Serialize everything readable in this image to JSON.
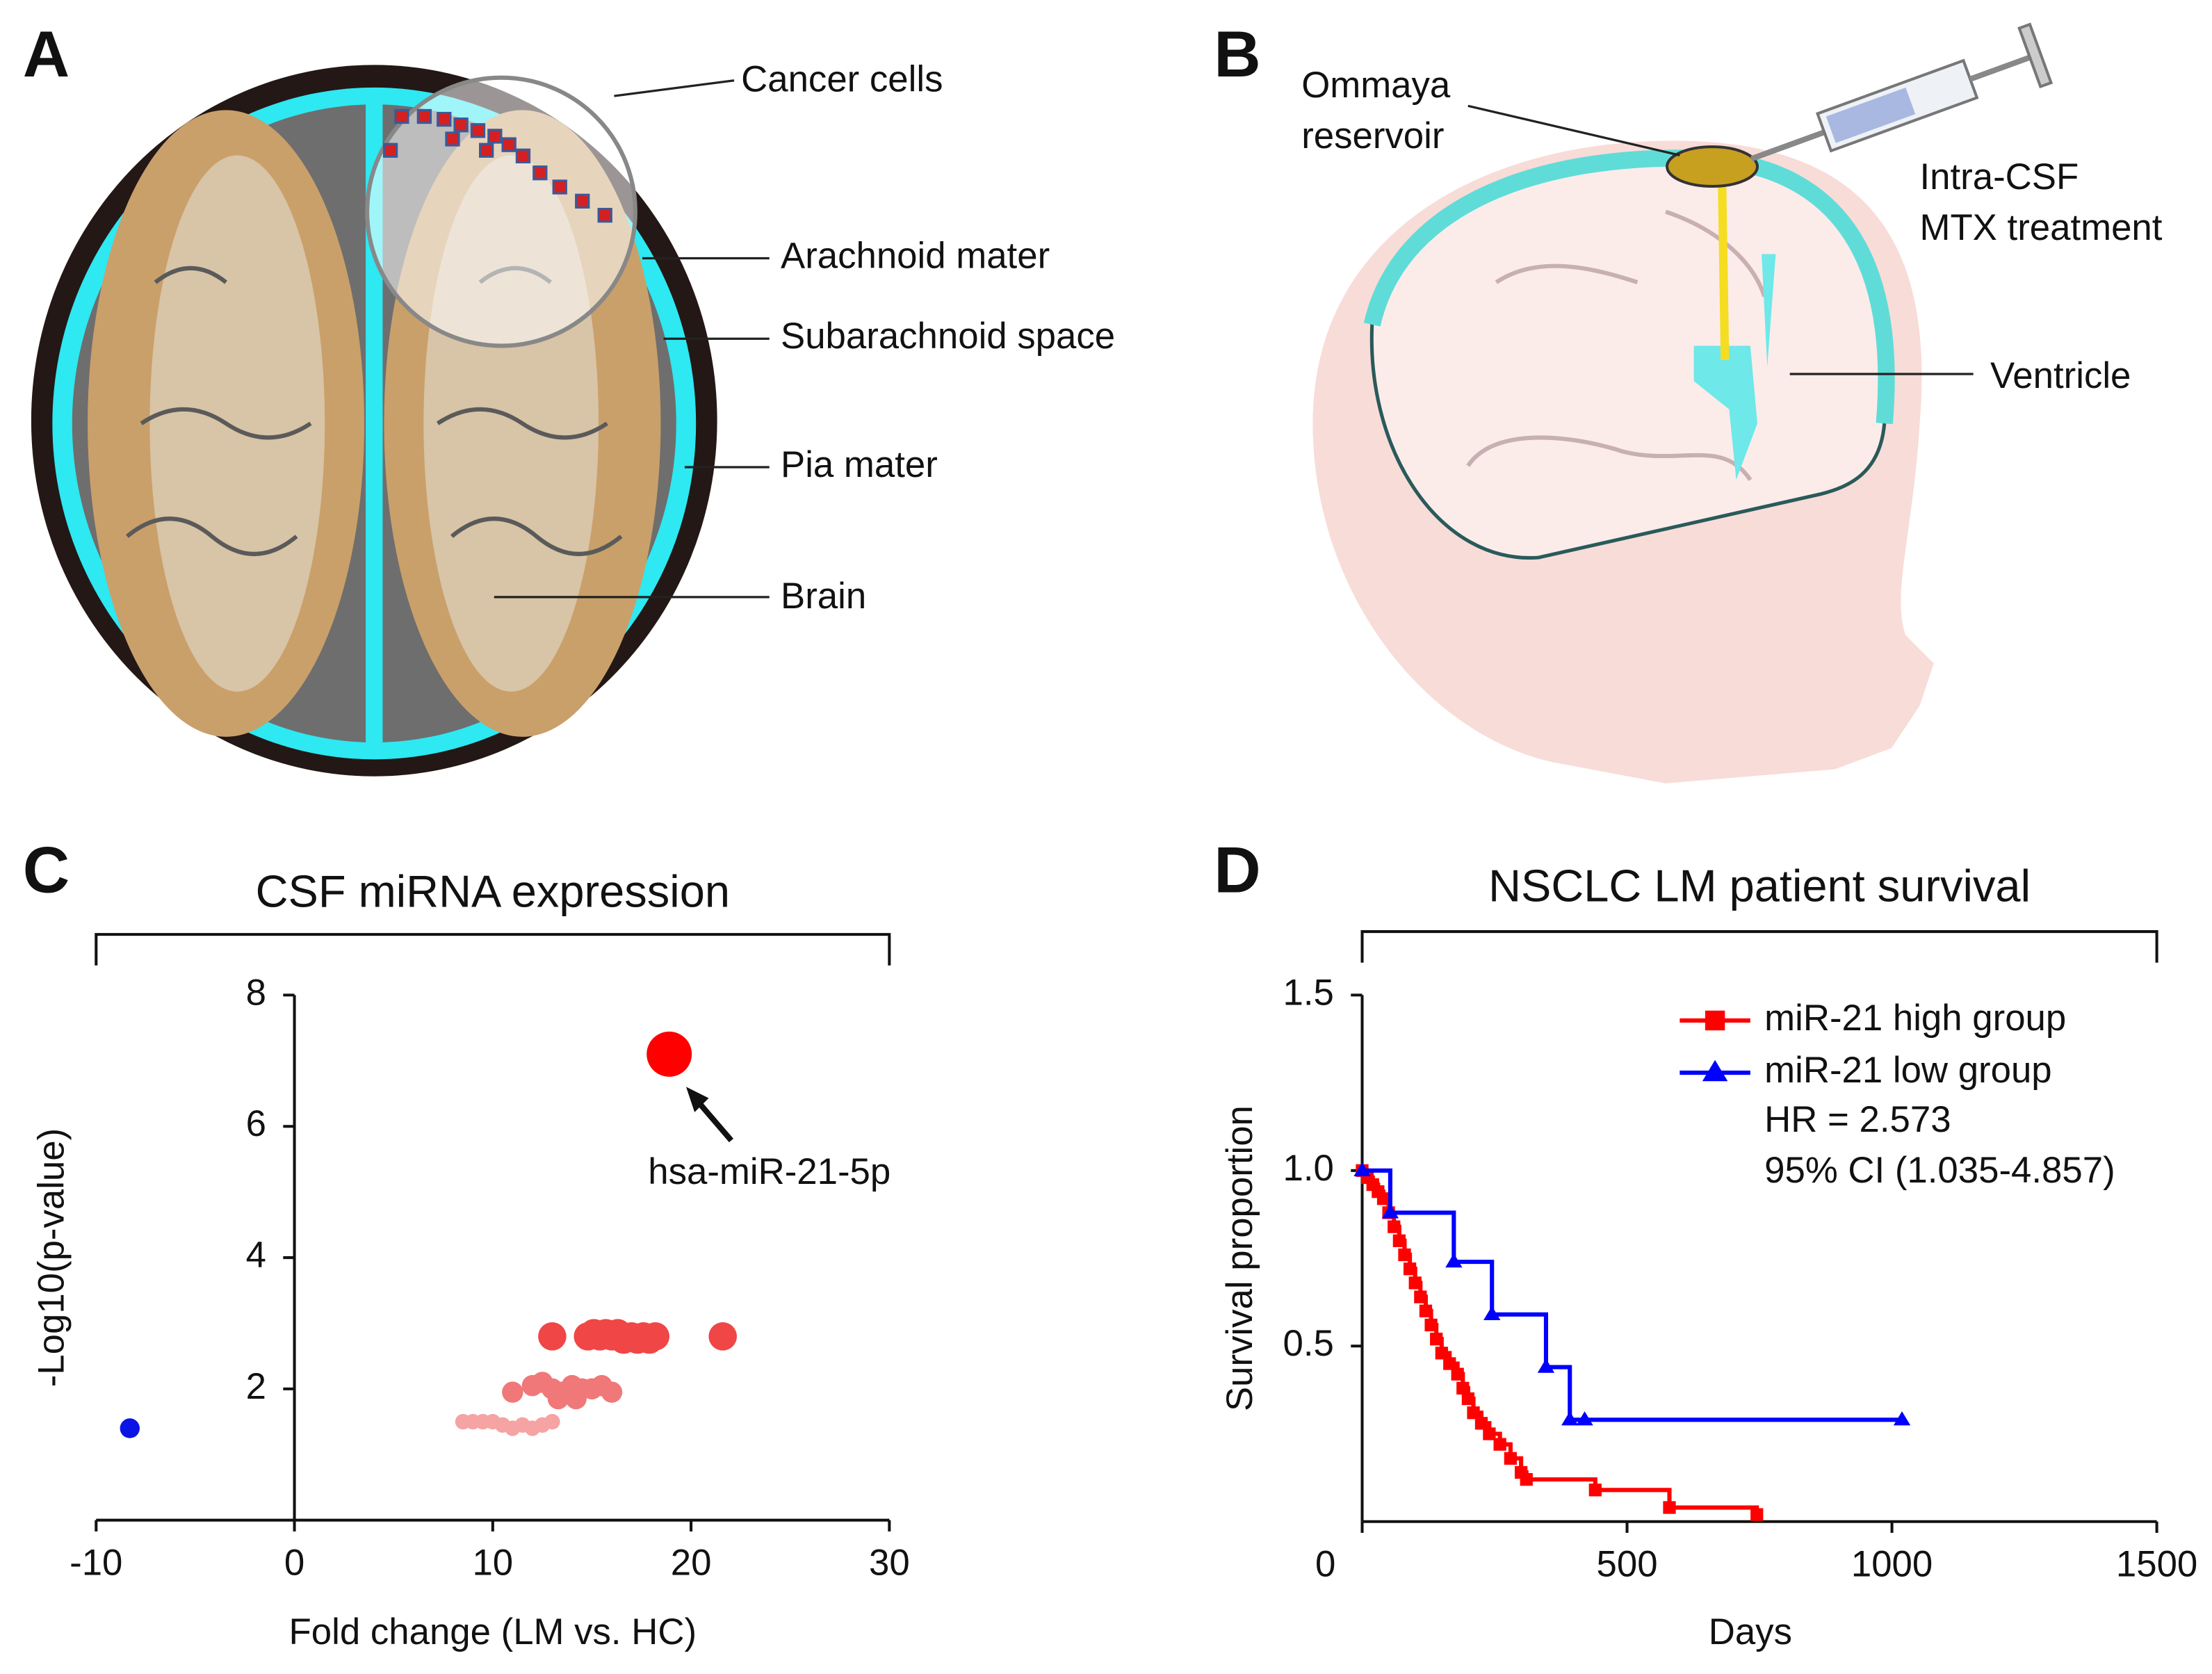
{
  "figure": {
    "panels": [
      "A",
      "B",
      "C",
      "D"
    ]
  },
  "illustrations": {
    "A": {
      "labels": [
        "Cancer cells",
        "Arachnoid mater",
        "Subarachnoid space",
        "Pia mater",
        "Brain"
      ]
    },
    "B": {
      "labels": [
        [
          "Ommaya",
          "reservoir"
        ],
        [
          "Intra-CSF",
          "MTX treatment"
        ],
        [
          "Ventricle"
        ]
      ]
    }
  },
  "chart_data": [
    {
      "type": "scatter",
      "title": "CSF miRNA expression",
      "xlabel": "Fold change (LM vs. HC)",
      "ylabel": "-Log10(p-value)",
      "xlim": [
        -10,
        30
      ],
      "xticks": [
        -10,
        0,
        10,
        20,
        30
      ],
      "ylim": [
        0,
        8
      ],
      "yticks": [
        2,
        4,
        6,
        8
      ],
      "series": [
        {
          "color": "#ff0000",
          "x": [
            18.9
          ],
          "values": [
            7.1
          ]
        },
        {
          "color": "#0a14e6",
          "x": [
            -8.3
          ],
          "values": [
            1.4
          ]
        },
        {
          "color": "#f04646",
          "x": [
            13.0,
            14.8,
            15.1,
            15.4,
            15.7,
            16.0,
            16.3,
            16.6,
            17.0,
            17.3,
            17.6,
            17.9,
            18.2,
            21.6
          ],
          "values": [
            2.8,
            2.8,
            2.85,
            2.8,
            2.85,
            2.8,
            2.85,
            2.75,
            2.8,
            2.75,
            2.8,
            2.75,
            2.8,
            2.8
          ]
        },
        {
          "color": "#f07878",
          "x": [
            11.0,
            12.0,
            12.5,
            13.0,
            13.3,
            13.5,
            14.0,
            14.2,
            14.5,
            15.0,
            15.5,
            16.0
          ],
          "values": [
            1.95,
            2.05,
            2.1,
            2.0,
            1.85,
            1.95,
            2.05,
            1.85,
            2.0,
            2.0,
            2.05,
            1.95
          ]
        },
        {
          "color": "#f5a3a3",
          "x": [
            8.5,
            9.0,
            9.5,
            10.0,
            10.5,
            11.0,
            11.5,
            12.0,
            12.5,
            13.0
          ],
          "values": [
            1.5,
            1.5,
            1.5,
            1.5,
            1.45,
            1.4,
            1.45,
            1.4,
            1.45,
            1.5
          ]
        }
      ],
      "annotations": [
        "hsa-miR-21-5p"
      ]
    },
    {
      "type": "line",
      "step": true,
      "title": "NSCLC LM patient survival",
      "xlabel": "Days",
      "ylabel": "Survival proportion",
      "xlim": [
        0,
        1500
      ],
      "xticks": [
        0,
        500,
        1000,
        1500
      ],
      "ylim": [
        0,
        1.5
      ],
      "yticks": [
        0.5,
        {
          "value": 1,
          "label": "1.0"
        },
        1.5
      ],
      "legend": "upper right",
      "series": [
        {
          "name": "miR-21 high group",
          "color": "#ff0000",
          "marker": "square",
          "x": [
            0,
            10,
            20,
            30,
            40,
            50,
            60,
            70,
            80,
            90,
            100,
            110,
            120,
            130,
            140,
            150,
            165,
            180,
            190,
            200,
            210,
            225,
            240,
            260,
            280,
            300,
            310,
            440,
            580,
            745
          ],
          "values": [
            1.0,
            0.98,
            0.96,
            0.94,
            0.92,
            0.88,
            0.84,
            0.8,
            0.76,
            0.72,
            0.68,
            0.64,
            0.6,
            0.56,
            0.52,
            0.48,
            0.45,
            0.42,
            0.38,
            0.35,
            0.31,
            0.28,
            0.25,
            0.22,
            0.18,
            0.14,
            0.12,
            0.09,
            0.04,
            0.02
          ]
        },
        {
          "name": "miR-21 low group",
          "color": "#0000ff",
          "marker": "triangle",
          "x": [
            0,
            53,
            173,
            245,
            347,
            392,
            420,
            1019
          ],
          "values": [
            1.0,
            0.88,
            0.74,
            0.59,
            0.44,
            0.29,
            0.29,
            0.29
          ]
        }
      ],
      "annotations": [
        "HR = 2.573",
        "95% CI (1.035-4.857)"
      ]
    }
  ]
}
